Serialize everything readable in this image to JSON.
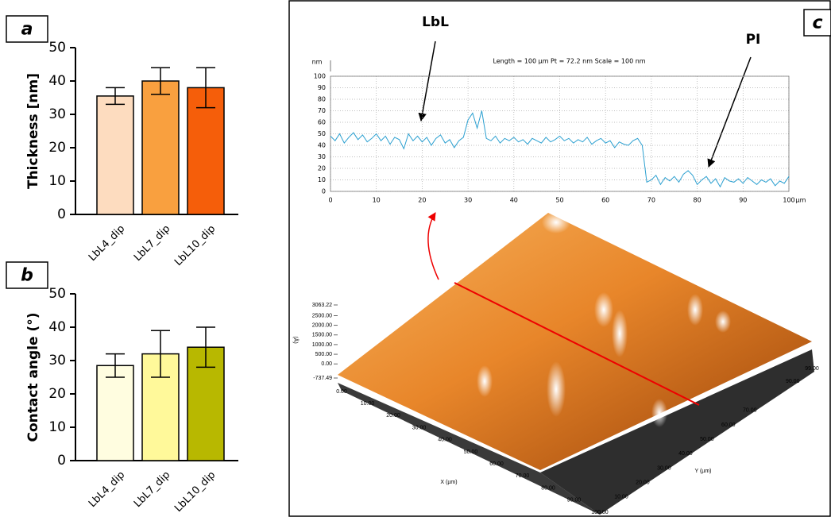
{
  "chart_data": [
    {
      "type": "bar",
      "panel_label": "a",
      "ylabel": "Thickness [nm]",
      "categories": [
        "LbL4_dip",
        "LbL7_dip",
        "LbL10_dip"
      ],
      "values": [
        35.5,
        40,
        38
      ],
      "errors": [
        2.5,
        4,
        6
      ],
      "colors": [
        "#fddcbf",
        "#f9a03f",
        "#f55e0a"
      ],
      "ylim": [
        0,
        50
      ],
      "yticks": [
        0,
        10,
        20,
        30,
        40,
        50
      ]
    },
    {
      "type": "bar",
      "panel_label": "b",
      "ylabel": "Contact angle (°)",
      "categories": [
        "LbL4_dip",
        "LbL7_dip",
        "LbL10_dip"
      ],
      "values": [
        28.5,
        32,
        34
      ],
      "errors": [
        3.5,
        7,
        6
      ],
      "colors": [
        "#fffde0",
        "#fff99a",
        "#b8b800"
      ],
      "ylim": [
        0,
        50
      ],
      "yticks": [
        0,
        10,
        20,
        30,
        40,
        50
      ]
    },
    {
      "type": "line",
      "panel_label": "c",
      "title": "Length = 100 µm  Pt = 72.2 nm  Scale = 100 nm",
      "ylabel": "nm",
      "xlabel": "µm",
      "annotations": [
        "LbL",
        "PI"
      ],
      "x": [
        0,
        1,
        2,
        3,
        4,
        5,
        6,
        7,
        8,
        9,
        10,
        11,
        12,
        13,
        14,
        15,
        16,
        17,
        18,
        19,
        20,
        21,
        22,
        23,
        24,
        25,
        26,
        27,
        28,
        29,
        30,
        31,
        32,
        33,
        34,
        35,
        36,
        37,
        38,
        39,
        40,
        41,
        42,
        43,
        44,
        45,
        46,
        47,
        48,
        49,
        50,
        51,
        52,
        53,
        54,
        55,
        56,
        57,
        58,
        59,
        60,
        61,
        62,
        63,
        64,
        65,
        66,
        67,
        68,
        69,
        70,
        71,
        72,
        73,
        74,
        75,
        76,
        77,
        78,
        79,
        80,
        81,
        82,
        83,
        84,
        85,
        86,
        87,
        88,
        89,
        90,
        91,
        92,
        93,
        94,
        95,
        96,
        97,
        98,
        99,
        100
      ],
      "values": [
        48,
        44,
        50,
        42,
        47,
        51,
        45,
        49,
        43,
        46,
        50,
        44,
        48,
        41,
        47,
        45,
        37,
        50,
        44,
        48,
        43,
        47,
        40,
        46,
        49,
        42,
        45,
        38,
        44,
        47,
        62,
        68,
        55,
        70,
        46,
        44,
        48,
        42,
        46,
        44,
        47,
        43,
        45,
        41,
        46,
        44,
        42,
        47,
        43,
        45,
        48,
        44,
        46,
        42,
        45,
        43,
        47,
        41,
        44,
        46,
        42,
        44,
        38,
        43,
        41,
        40,
        44,
        46,
        40,
        8,
        10,
        14,
        6,
        12,
        9,
        13,
        8,
        15,
        18,
        14,
        6,
        10,
        13,
        7,
        11,
        4,
        12,
        9,
        8,
        11,
        7,
        12,
        9,
        6,
        10,
        8,
        11,
        5,
        9,
        7,
        13
      ],
      "color": "#2a9fd0",
      "xlim": [
        0,
        100
      ],
      "ylim": [
        0,
        100
      ],
      "xticks": [
        0,
        10,
        20,
        30,
        40,
        50,
        60,
        70,
        80,
        90,
        100
      ],
      "yticks": [
        0,
        10,
        20,
        30,
        40,
        50,
        60,
        70,
        80,
        90,
        100
      ],
      "grid": true
    }
  ],
  "afm_image": {
    "z_unit": "(Å)",
    "x_label": "X (µm)",
    "y_label": "Y (µm)",
    "z_ticks": [
      {
        "value": 3063.22,
        "label": "3063.22"
      },
      {
        "value": 2500,
        "label": "2500.00"
      },
      {
        "value": 2000,
        "label": "2000.00"
      },
      {
        "value": 1500,
        "label": "1500.00"
      },
      {
        "value": 1000,
        "label": "1000.00"
      },
      {
        "value": 500,
        "label": "500.00"
      },
      {
        "value": 0,
        "label": "0.00"
      },
      {
        "value": -737.49,
        "label": "-737.49"
      }
    ],
    "x_ticks": [
      {
        "value": 0,
        "label": "0.00"
      },
      {
        "value": 10,
        "label": "10.00"
      },
      {
        "value": 20,
        "label": "20.00"
      },
      {
        "value": 30,
        "label": "30.00"
      },
      {
        "value": 40,
        "label": "40.00"
      },
      {
        "value": 50,
        "label": "50.00"
      },
      {
        "value": 60,
        "label": "60.00"
      },
      {
        "value": 70,
        "label": "70.00"
      },
      {
        "value": 80,
        "label": "80.00"
      },
      {
        "value": 90,
        "label": "90.00"
      },
      {
        "value": 100,
        "label": "100.00"
      }
    ],
    "y_ticks": [
      {
        "value": 10,
        "label": "10.00"
      },
      {
        "value": 20,
        "label": "20.00"
      },
      {
        "value": 30,
        "label": "30.00"
      },
      {
        "value": 40,
        "label": "40.00"
      },
      {
        "value": 50,
        "label": "50.00"
      },
      {
        "value": 60,
        "label": "60.00"
      },
      {
        "value": 70,
        "label": "70.00"
      },
      {
        "value": 90,
        "label": "90.00"
      },
      {
        "value": 99,
        "label": "99.00"
      }
    ]
  }
}
